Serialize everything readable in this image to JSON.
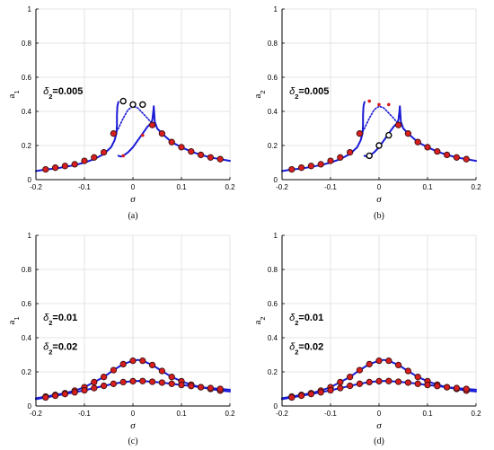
{
  "chart_data": [
    {
      "panel": "(a)",
      "type": "line",
      "ylabel": "a",
      "ylabel_sub": "1",
      "xlabel": "σ",
      "xlim": [
        -0.2,
        0.2
      ],
      "ylim": [
        0,
        1
      ],
      "xticks": [
        "-0.2",
        "-0.1",
        "0",
        "0.1",
        "0.2"
      ],
      "yticks": [
        "0",
        "0.2",
        "0.4",
        "0.6",
        "0.8",
        "1"
      ],
      "grid": true,
      "annotations": [
        {
          "text": "=0.005",
          "symbol": "δ",
          "sub": "2",
          "at": [
            -0.185,
            0.5
          ]
        }
      ],
      "series": [
        {
          "style": "stable-branch",
          "color": "#1a1ad6",
          "x": [
            -0.2,
            -0.18,
            -0.16,
            -0.14,
            -0.12,
            -0.1,
            -0.08,
            -0.06,
            -0.045,
            -0.038,
            -0.034,
            -0.033,
            -0.033,
            -0.032,
            -0.03
          ],
          "y": [
            0.05,
            0.06,
            0.065,
            0.075,
            0.085,
            0.1,
            0.12,
            0.15,
            0.19,
            0.23,
            0.27,
            0.32,
            0.38,
            0.43,
            0.455
          ]
        },
        {
          "style": "stable-branch",
          "color": "#1a1ad6",
          "x": [
            -0.03,
            -0.025,
            -0.02,
            -0.01,
            0,
            0.01,
            0.02,
            0.03,
            0.037,
            0.04,
            0.042,
            0.043,
            0.045,
            0.05,
            0.06,
            0.08,
            0.1,
            0.12,
            0.14,
            0.16,
            0.18,
            0.2
          ],
          "y": [
            0.14,
            0.135,
            0.14,
            0.16,
            0.19,
            0.23,
            0.27,
            0.31,
            0.33,
            0.35,
            0.4,
            0.43,
            0.34,
            0.3,
            0.27,
            0.22,
            0.19,
            0.165,
            0.145,
            0.13,
            0.12,
            0.11
          ]
        },
        {
          "style": "unstable-branch",
          "color": "#1a1ad6",
          "x": [
            -0.034,
            -0.03,
            -0.025,
            -0.02,
            -0.01,
            0,
            0.01,
            0.02,
            0.03,
            0.036,
            0.04
          ],
          "y": [
            0.28,
            0.3,
            0.33,
            0.36,
            0.41,
            0.43,
            0.42,
            0.39,
            0.36,
            0.34,
            0.33
          ]
        },
        {
          "style": "markers-filled",
          "color": "#d81e1e",
          "x": [
            -0.18,
            -0.16,
            -0.14,
            -0.12,
            -0.1,
            -0.08,
            -0.06,
            -0.04,
            0.04,
            0.06,
            0.08,
            0.1,
            0.12,
            0.14,
            0.16,
            0.18
          ],
          "y": [
            0.06,
            0.07,
            0.08,
            0.09,
            0.11,
            0.13,
            0.16,
            0.27,
            0.32,
            0.27,
            0.22,
            0.19,
            0.165,
            0.145,
            0.13,
            0.12
          ]
        },
        {
          "style": "markers-open",
          "color": "#000000",
          "x": [
            -0.02,
            0,
            0.02
          ],
          "y": [
            0.46,
            0.44,
            0.44
          ]
        },
        {
          "style": "markers-small",
          "color": "#d81e1e",
          "x": [
            -0.02,
            0.02
          ],
          "y": [
            0.14,
            0.26
          ]
        }
      ]
    },
    {
      "panel": "(b)",
      "type": "line",
      "ylabel": "a",
      "ylabel_sub": "2",
      "xlabel": "σ",
      "xlim": [
        -0.2,
        0.2
      ],
      "ylim": [
        0,
        1
      ],
      "xticks": [
        "-0.2",
        "-0.1",
        "0",
        "0.1",
        "0.2"
      ],
      "yticks": [
        "0",
        "0.2",
        "0.4",
        "0.6",
        "0.8",
        "1"
      ],
      "grid": true,
      "annotations": [
        {
          "text": "=0.005",
          "symbol": "δ",
          "sub": "2",
          "at": [
            -0.185,
            0.5
          ]
        }
      ],
      "series": [
        {
          "style": "stable-branch",
          "color": "#1a1ad6",
          "x": [
            -0.2,
            -0.18,
            -0.16,
            -0.14,
            -0.12,
            -0.1,
            -0.08,
            -0.06,
            -0.045,
            -0.038,
            -0.034,
            -0.033,
            -0.033,
            -0.032,
            -0.03
          ],
          "y": [
            0.05,
            0.06,
            0.065,
            0.075,
            0.085,
            0.1,
            0.12,
            0.15,
            0.19,
            0.23,
            0.27,
            0.32,
            0.38,
            0.43,
            0.455
          ]
        },
        {
          "style": "stable-branch",
          "color": "#1a1ad6",
          "x": [
            -0.03,
            -0.025,
            -0.02,
            -0.01,
            0,
            0.01,
            0.02,
            0.03,
            0.037,
            0.04,
            0.042,
            0.043,
            0.045,
            0.05,
            0.06,
            0.08,
            0.1,
            0.12,
            0.14,
            0.16,
            0.18,
            0.2
          ],
          "y": [
            0.14,
            0.135,
            0.14,
            0.16,
            0.19,
            0.23,
            0.27,
            0.31,
            0.33,
            0.35,
            0.4,
            0.43,
            0.34,
            0.3,
            0.27,
            0.22,
            0.19,
            0.165,
            0.145,
            0.13,
            0.12,
            0.11
          ]
        },
        {
          "style": "unstable-branch",
          "color": "#1a1ad6",
          "x": [
            -0.034,
            -0.03,
            -0.025,
            -0.02,
            -0.01,
            0,
            0.01,
            0.02,
            0.03,
            0.036,
            0.04
          ],
          "y": [
            0.28,
            0.3,
            0.33,
            0.36,
            0.41,
            0.43,
            0.42,
            0.39,
            0.36,
            0.34,
            0.33
          ]
        },
        {
          "style": "markers-filled",
          "color": "#d81e1e",
          "x": [
            -0.18,
            -0.16,
            -0.14,
            -0.12,
            -0.1,
            -0.08,
            -0.06,
            -0.04,
            0.04,
            0.06,
            0.08,
            0.1,
            0.12,
            0.14,
            0.16,
            0.18
          ],
          "y": [
            0.06,
            0.07,
            0.08,
            0.09,
            0.11,
            0.13,
            0.16,
            0.27,
            0.32,
            0.27,
            0.22,
            0.19,
            0.165,
            0.145,
            0.13,
            0.12
          ]
        },
        {
          "style": "markers-open",
          "color": "#000000",
          "x": [
            -0.02,
            0,
            0.02
          ],
          "y": [
            0.14,
            0.2,
            0.26
          ]
        },
        {
          "style": "markers-small",
          "color": "#d81e1e",
          "x": [
            -0.02,
            0,
            0.02
          ],
          "y": [
            0.46,
            0.44,
            0.44
          ]
        }
      ]
    },
    {
      "panel": "(c)",
      "type": "line",
      "ylabel": "a",
      "ylabel_sub": "1",
      "xlabel": "σ",
      "xlim": [
        -0.2,
        0.2
      ],
      "ylim": [
        0,
        1
      ],
      "xticks": [
        "-0.2",
        "-0.1",
        "0",
        "0.1",
        "0.2"
      ],
      "yticks": [
        "0",
        "0.2",
        "0.4",
        "0.6",
        "0.8",
        "1"
      ],
      "grid": true,
      "annotations": [
        {
          "text": "=0.01",
          "symbol": "δ",
          "sub": "2",
          "at": [
            -0.185,
            0.5
          ]
        },
        {
          "text": "=0.02",
          "symbol": "δ",
          "sub": "2",
          "at": [
            -0.185,
            0.33
          ]
        }
      ],
      "series": [
        {
          "style": "stable-branch",
          "color": "#1a1ad6",
          "x": [
            -0.2,
            -0.18,
            -0.16,
            -0.14,
            -0.12,
            -0.1,
            -0.08,
            -0.06,
            -0.04,
            -0.02,
            0,
            0.01,
            0.02,
            0.04,
            0.06,
            0.08,
            0.1,
            0.12,
            0.14,
            0.16,
            0.18,
            0.2
          ],
          "y": [
            0.045,
            0.055,
            0.065,
            0.075,
            0.09,
            0.11,
            0.14,
            0.17,
            0.21,
            0.245,
            0.265,
            0.27,
            0.265,
            0.24,
            0.205,
            0.17,
            0.145,
            0.125,
            0.11,
            0.1,
            0.09,
            0.085
          ]
        },
        {
          "style": "stable-branch",
          "color": "#1a1ad6",
          "x": [
            -0.2,
            -0.18,
            -0.16,
            -0.14,
            -0.12,
            -0.1,
            -0.08,
            -0.06,
            -0.04,
            -0.02,
            0,
            0.01,
            0.02,
            0.04,
            0.06,
            0.08,
            0.1,
            0.12,
            0.14,
            0.16,
            0.18,
            0.2
          ],
          "y": [
            0.04,
            0.05,
            0.06,
            0.07,
            0.08,
            0.092,
            0.105,
            0.118,
            0.13,
            0.14,
            0.145,
            0.147,
            0.146,
            0.142,
            0.137,
            0.13,
            0.123,
            0.117,
            0.11,
            0.105,
            0.1,
            0.095
          ]
        },
        {
          "style": "markers-filled",
          "color": "#d81e1e",
          "x": [
            -0.18,
            -0.16,
            -0.14,
            -0.12,
            -0.1,
            -0.08,
            -0.06,
            -0.04,
            -0.02,
            0,
            0.02,
            0.04,
            0.06,
            0.08,
            0.1,
            0.12,
            0.14,
            0.16,
            0.18
          ],
          "y": [
            0.055,
            0.065,
            0.075,
            0.09,
            0.11,
            0.14,
            0.17,
            0.21,
            0.245,
            0.265,
            0.265,
            0.24,
            0.205,
            0.17,
            0.145,
            0.125,
            0.11,
            0.1,
            0.09
          ]
        },
        {
          "style": "markers-filled",
          "color": "#d81e1e",
          "x": [
            -0.18,
            -0.16,
            -0.14,
            -0.12,
            -0.1,
            -0.08,
            -0.06,
            -0.04,
            -0.02,
            0,
            0.02,
            0.04,
            0.06,
            0.08,
            0.1,
            0.12,
            0.14,
            0.16,
            0.18
          ],
          "y": [
            0.05,
            0.06,
            0.07,
            0.08,
            0.092,
            0.105,
            0.118,
            0.13,
            0.14,
            0.145,
            0.146,
            0.142,
            0.137,
            0.13,
            0.123,
            0.117,
            0.11,
            0.105,
            0.1
          ]
        }
      ]
    },
    {
      "panel": "(d)",
      "type": "line",
      "ylabel": "a",
      "ylabel_sub": "2",
      "xlabel": "σ",
      "xlim": [
        -0.2,
        0.2
      ],
      "ylim": [
        0,
        1
      ],
      "xticks": [
        "-0.2",
        "-0.1",
        "0",
        "0.1",
        "0.2"
      ],
      "yticks": [
        "0",
        "0.2",
        "0.4",
        "0.6",
        "0.8",
        "1"
      ],
      "grid": true,
      "annotations": [
        {
          "text": "=0.01",
          "symbol": "δ",
          "sub": "2",
          "at": [
            -0.185,
            0.5
          ]
        },
        {
          "text": "=0.02",
          "symbol": "δ",
          "sub": "2",
          "at": [
            -0.185,
            0.33
          ]
        }
      ],
      "series": [
        {
          "style": "stable-branch",
          "color": "#1a1ad6",
          "x": [
            -0.2,
            -0.18,
            -0.16,
            -0.14,
            -0.12,
            -0.1,
            -0.08,
            -0.06,
            -0.04,
            -0.02,
            0,
            0.01,
            0.02,
            0.04,
            0.06,
            0.08,
            0.1,
            0.12,
            0.14,
            0.16,
            0.18,
            0.2
          ],
          "y": [
            0.045,
            0.055,
            0.065,
            0.075,
            0.09,
            0.11,
            0.14,
            0.17,
            0.21,
            0.245,
            0.265,
            0.27,
            0.265,
            0.24,
            0.205,
            0.17,
            0.145,
            0.125,
            0.11,
            0.1,
            0.09,
            0.085
          ]
        },
        {
          "style": "stable-branch",
          "color": "#1a1ad6",
          "x": [
            -0.2,
            -0.18,
            -0.16,
            -0.14,
            -0.12,
            -0.1,
            -0.08,
            -0.06,
            -0.04,
            -0.02,
            0,
            0.01,
            0.02,
            0.04,
            0.06,
            0.08,
            0.1,
            0.12,
            0.14,
            0.16,
            0.18,
            0.2
          ],
          "y": [
            0.04,
            0.05,
            0.06,
            0.07,
            0.08,
            0.092,
            0.105,
            0.118,
            0.13,
            0.14,
            0.145,
            0.147,
            0.146,
            0.142,
            0.137,
            0.13,
            0.123,
            0.117,
            0.11,
            0.105,
            0.1,
            0.095
          ]
        },
        {
          "style": "markers-filled",
          "color": "#d81e1e",
          "x": [
            -0.18,
            -0.16,
            -0.14,
            -0.12,
            -0.1,
            -0.08,
            -0.06,
            -0.04,
            -0.02,
            0,
            0.02,
            0.04,
            0.06,
            0.08,
            0.1,
            0.12,
            0.14,
            0.16,
            0.18
          ],
          "y": [
            0.055,
            0.065,
            0.075,
            0.09,
            0.11,
            0.14,
            0.17,
            0.21,
            0.245,
            0.265,
            0.265,
            0.24,
            0.205,
            0.17,
            0.145,
            0.125,
            0.11,
            0.1,
            0.09
          ]
        },
        {
          "style": "markers-filled",
          "color": "#d81e1e",
          "x": [
            -0.18,
            -0.16,
            -0.14,
            -0.12,
            -0.1,
            -0.08,
            -0.06,
            -0.04,
            -0.02,
            0,
            0.02,
            0.04,
            0.06,
            0.08,
            0.1,
            0.12,
            0.14,
            0.16,
            0.18
          ],
          "y": [
            0.05,
            0.06,
            0.07,
            0.08,
            0.092,
            0.105,
            0.118,
            0.13,
            0.14,
            0.145,
            0.146,
            0.142,
            0.137,
            0.13,
            0.123,
            0.117,
            0.11,
            0.105,
            0.1
          ]
        }
      ]
    }
  ]
}
